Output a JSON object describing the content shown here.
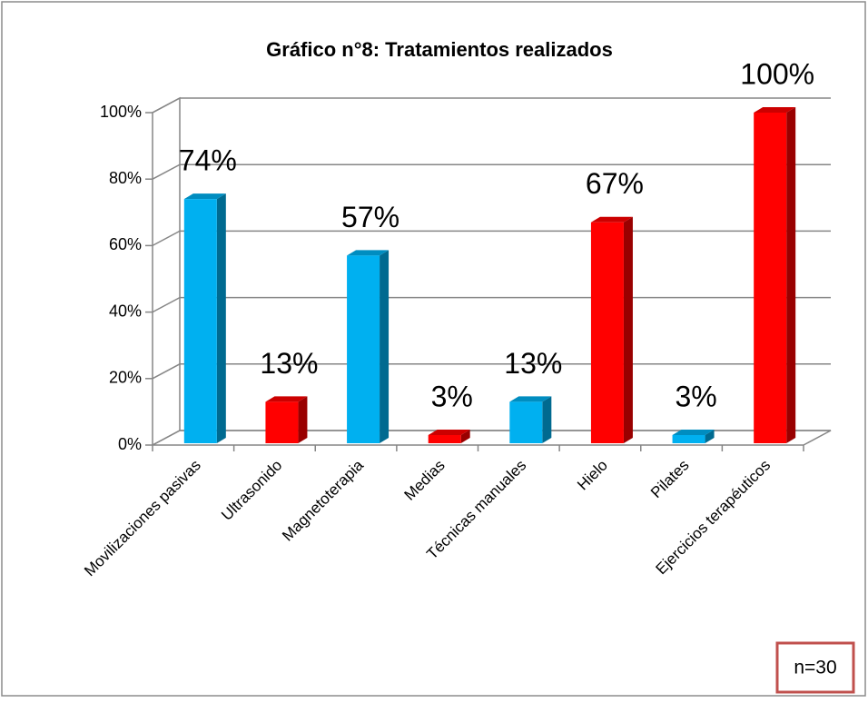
{
  "chart_data": {
    "type": "bar3d",
    "title": "Gráfico n°8: Tratamientos realizados",
    "categories": [
      "Movilizaciones pasivas",
      "Ultrasonido",
      "Magnetoterapia",
      "Medias",
      "Técnicas manuales",
      "Hielo",
      "Pilates",
      "Ejercicios terapéuticos"
    ],
    "values": [
      74,
      13,
      57,
      3,
      13,
      67,
      3,
      100
    ],
    "value_labels": [
      "74%",
      "13%",
      "57%",
      "3%",
      "13%",
      "67%",
      "3%",
      "100%"
    ],
    "colors": [
      "#00b0f0",
      "#ff0000",
      "#00b0f0",
      "#ff0000",
      "#00b0f0",
      "#ff0000",
      "#00b0f0",
      "#ff0000"
    ],
    "ylim": [
      0,
      100
    ],
    "yticks": [
      {
        "value": 0,
        "label": "0%"
      },
      {
        "value": 20,
        "label": "20%"
      },
      {
        "value": 40,
        "label": "40%"
      },
      {
        "value": 60,
        "label": "60%"
      },
      {
        "value": 80,
        "label": "80%"
      },
      {
        "value": 100,
        "label": "100%"
      }
    ],
    "grid": true,
    "annotation": "n=30"
  }
}
